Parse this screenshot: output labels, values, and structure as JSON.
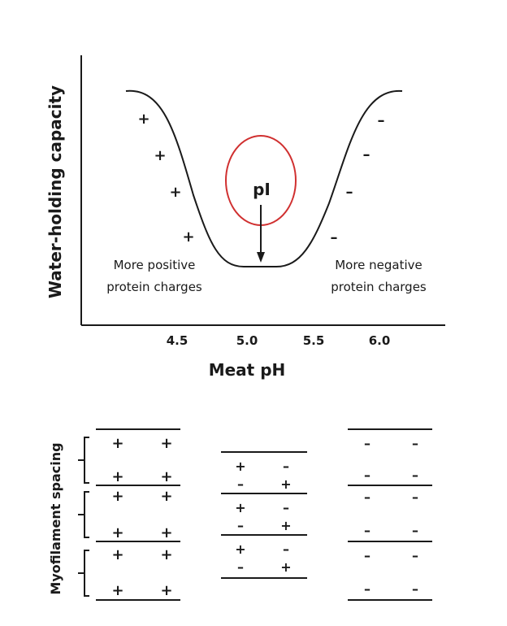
{
  "chart_data": {
    "type": "line",
    "xlabel": "Meat pH",
    "ylabel": "Water-holding capacity",
    "x_ticks": [
      "4.5",
      "5.0",
      "5.5",
      "6.0"
    ],
    "xlim": [
      4.1,
      6.4
    ],
    "annotation_pI": "pI",
    "note_left": [
      "More positive",
      "protein charges"
    ],
    "note_right": [
      "More negative",
      "protein charges"
    ],
    "left_signs": [
      "+",
      "+",
      "+",
      "+"
    ],
    "right_signs": [
      "–",
      "–",
      "–",
      "–"
    ]
  },
  "lower": {
    "ylabel": "Myofilament spacing",
    "plus": "+",
    "minus": "–"
  },
  "colors": {
    "ink": "#1a1a1a",
    "highlight": "#d03030"
  }
}
